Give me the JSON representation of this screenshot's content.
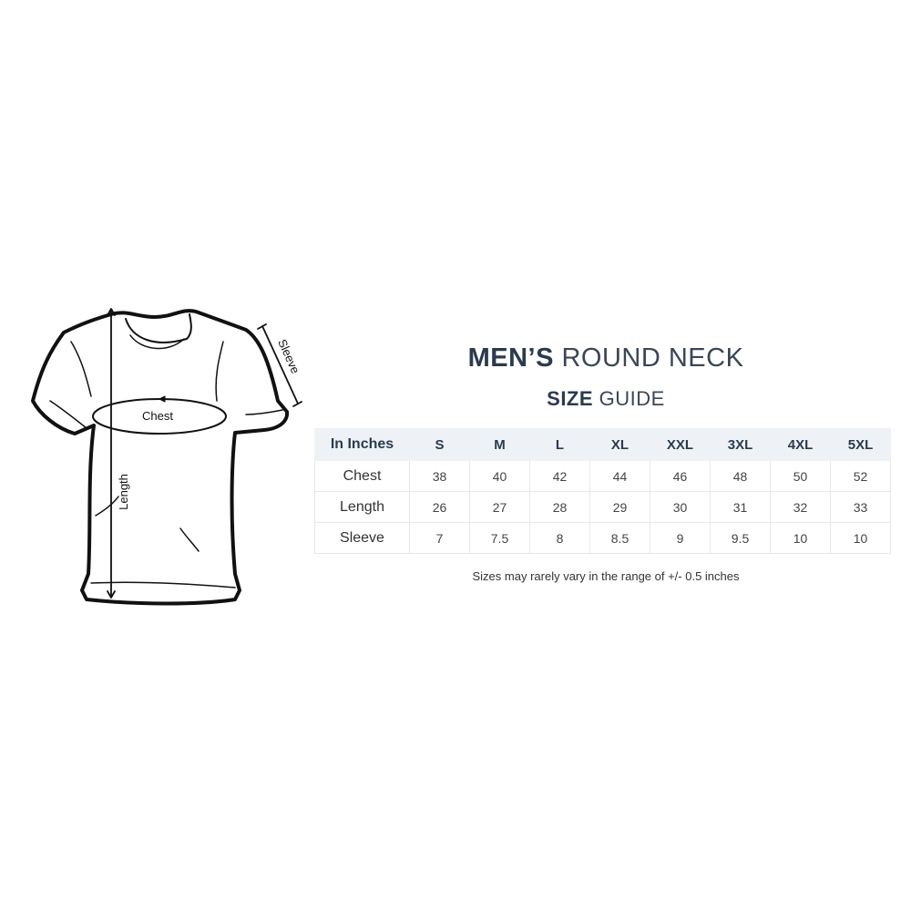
{
  "title": {
    "bold": "MEN’S",
    "light": "ROUND NECK"
  },
  "subtitle": {
    "bold": "SIZE",
    "light": "GUIDE"
  },
  "diagram": {
    "chest_label": "Chest",
    "length_label": "Length",
    "sleeve_label": "Sleeve"
  },
  "table": {
    "corner": "In Inches",
    "sizes": [
      "S",
      "M",
      "L",
      "XL",
      "XXL",
      "3XL",
      "4XL",
      "5XL"
    ],
    "rows": [
      {
        "label": "Chest",
        "values": [
          "38",
          "40",
          "42",
          "44",
          "46",
          "48",
          "50",
          "52"
        ]
      },
      {
        "label": "Length",
        "values": [
          "26",
          "27",
          "28",
          "29",
          "30",
          "31",
          "32",
          "33"
        ]
      },
      {
        "label": "Sleeve",
        "values": [
          "7",
          "7.5",
          "8",
          "8.5",
          "9",
          "9.5",
          "10",
          "10"
        ]
      }
    ]
  },
  "note": "Sizes may rarely vary in the range of +/- 0.5 inches"
}
